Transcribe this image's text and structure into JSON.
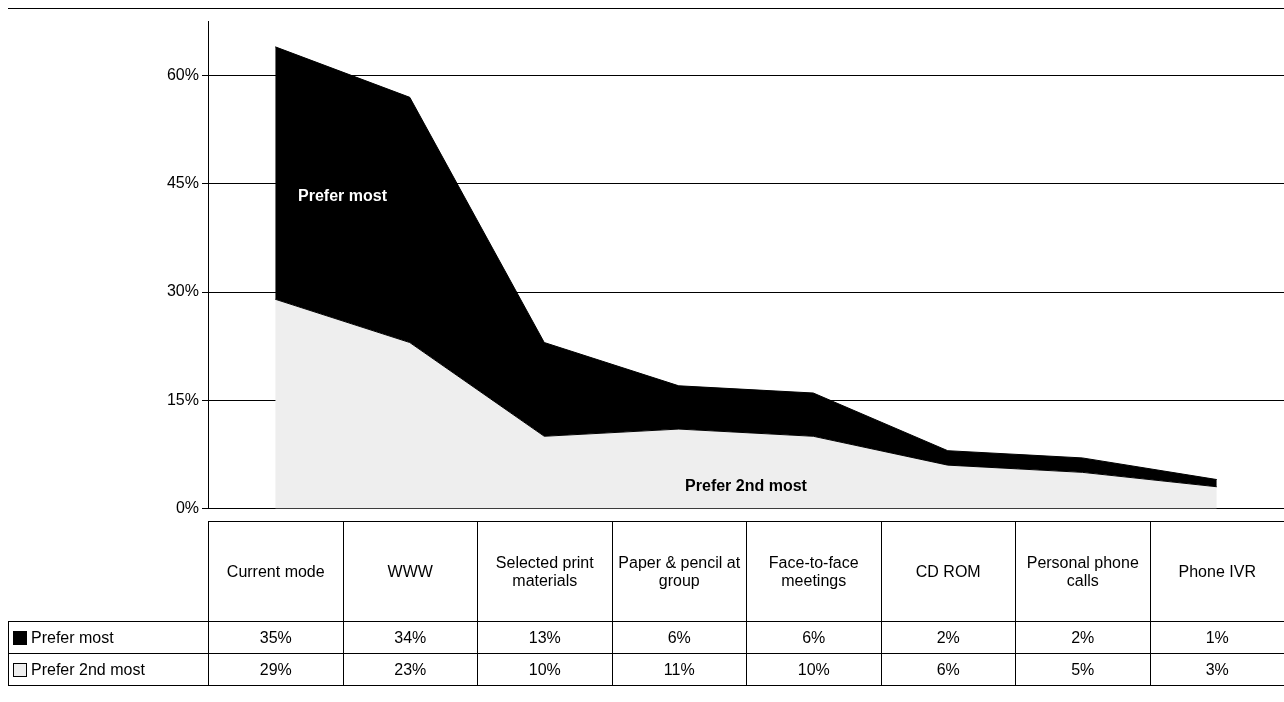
{
  "chart_data": {
    "type": "area",
    "stacked": true,
    "categories": [
      "Current mode",
      "WWW",
      "Selected print materials",
      "Paper & pencil at group",
      "Face-to-face meetings",
      "CD ROM",
      "Personal phone calls",
      "Phone IVR"
    ],
    "series": [
      {
        "name": "Prefer 2nd most",
        "color": "#eeeeee",
        "values": [
          29,
          23,
          10,
          11,
          10,
          6,
          5,
          3
        ],
        "value_labels": [
          "29%",
          "23%",
          "10%",
          "11%",
          "10%",
          "6%",
          "5%",
          "3%"
        ]
      },
      {
        "name": "Prefer most",
        "color": "#000000",
        "values": [
          35,
          34,
          13,
          6,
          6,
          2,
          2,
          1
        ],
        "value_labels": [
          "35%",
          "34%",
          "13%",
          "6%",
          "6%",
          "2%",
          "2%",
          "1%"
        ]
      }
    ],
    "ylim": [
      0,
      67.5
    ],
    "yticks": [
      {
        "value": 0,
        "label": "0%"
      },
      {
        "value": 15,
        "label": "15%"
      },
      {
        "value": 30,
        "label": "30%"
      },
      {
        "value": 45,
        "label": "45%"
      },
      {
        "value": 60,
        "label": "60%"
      }
    ],
    "grid": "y",
    "legend": "bottom",
    "data_labels": true
  }
}
